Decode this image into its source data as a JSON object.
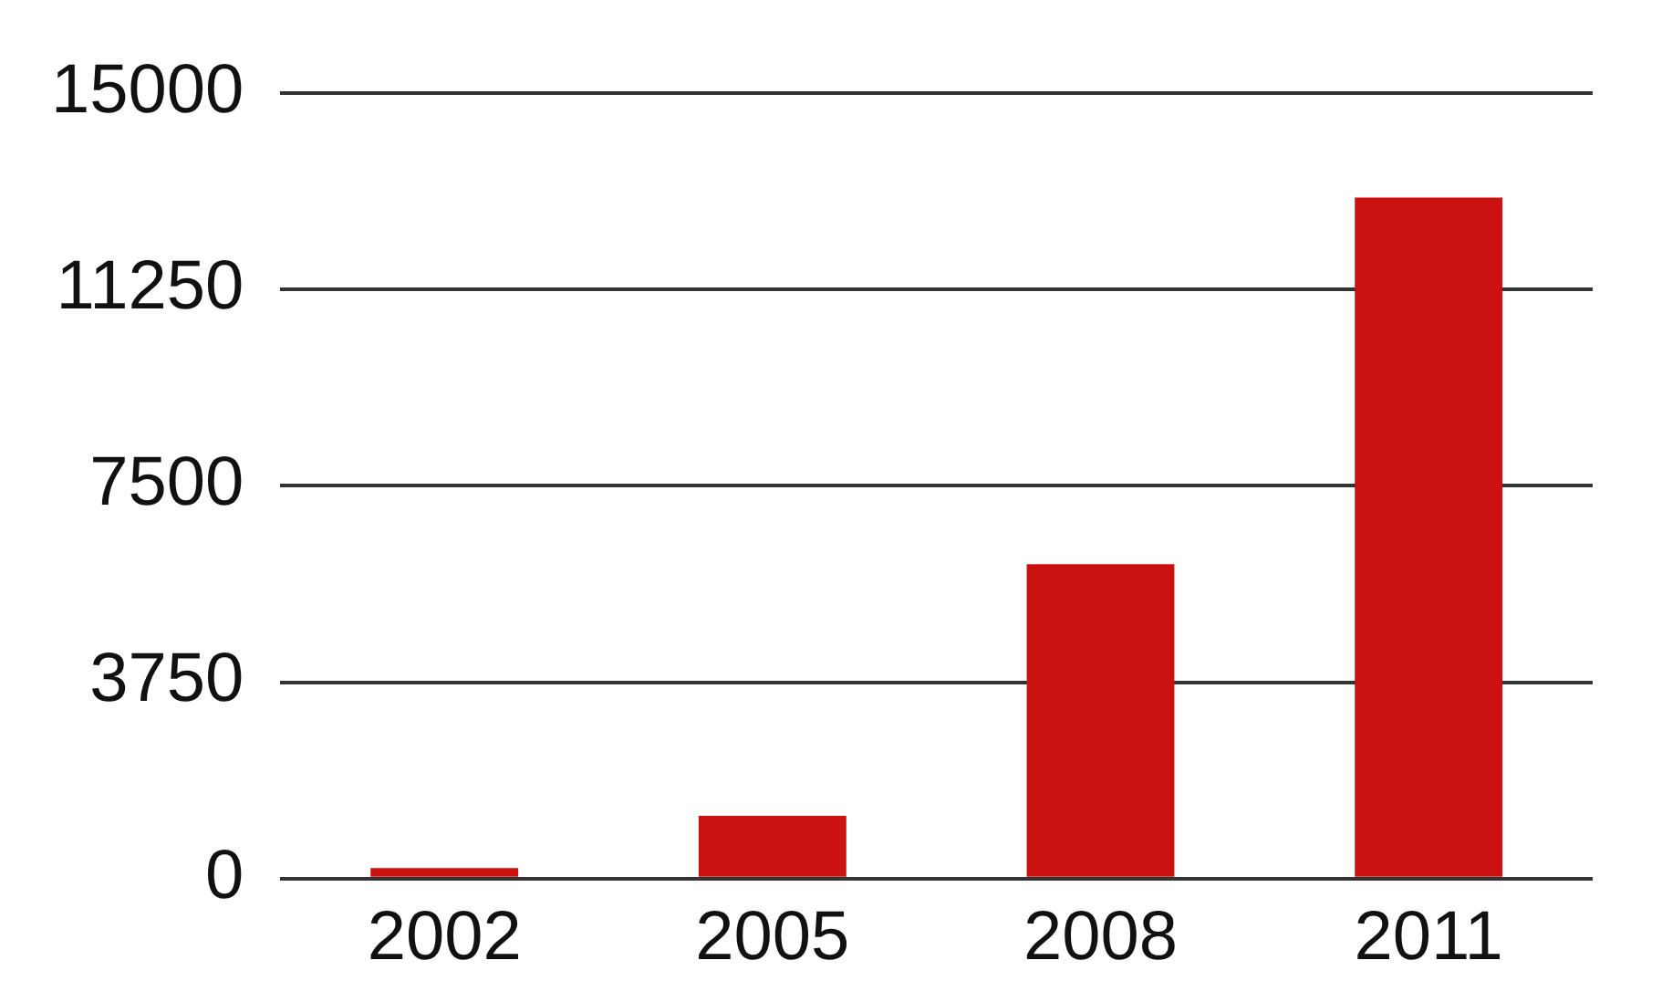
{
  "chart_data": {
    "type": "bar",
    "categories": [
      "2002",
      "2005",
      "2008",
      "2011"
    ],
    "values": [
      200,
      1200,
      6000,
      13000
    ],
    "color": "#cc1111",
    "ylim": [
      0,
      15000
    ],
    "yticks": [
      0,
      3750,
      7500,
      11250,
      15000
    ],
    "grid": "y"
  }
}
